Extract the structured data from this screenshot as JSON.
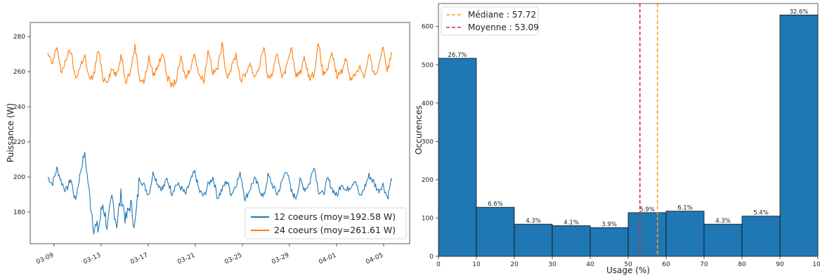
{
  "chart_data": [
    {
      "type": "line",
      "title": "",
      "xlabel": "",
      "ylabel": "Puissance (W)",
      "ylim": [
        162,
        288
      ],
      "yticks": [
        180,
        200,
        220,
        240,
        260,
        280
      ],
      "xticks": [
        "03-09",
        "03-13",
        "03-17",
        "03-21",
        "03-25",
        "03-29",
        "04-01",
        "04-05"
      ],
      "x_range_days": [
        "03-08",
        "04-06"
      ],
      "grid": false,
      "legend_position": "bottom-right",
      "series": [
        {
          "name": "12 coeurs (moy=192.58 W)",
          "color": "#1f77b4",
          "mean": 192.58,
          "values": [
            200,
            196,
            205,
            197,
            192,
            199,
            186,
            201,
            214,
            192,
            172,
            170,
            185,
            171,
            188,
            173,
            190,
            175,
            185,
            172,
            200,
            195,
            190,
            203,
            196,
            193,
            199,
            191,
            196,
            194,
            190,
            197,
            203,
            192,
            189,
            196,
            200,
            188,
            193,
            198,
            190,
            196,
            202,
            187,
            193,
            199,
            194,
            188,
            201,
            195,
            190,
            197,
            205,
            192,
            188,
            198,
            193,
            196,
            207,
            192,
            190,
            199,
            193,
            189,
            197,
            192,
            195,
            199,
            188,
            194,
            201,
            197,
            192,
            196,
            188,
            200
          ]
        },
        {
          "name": "24 coeurs (moy=261.61 W)",
          "color": "#ff7f0e",
          "mean": 261.61,
          "values": [
            270,
            264,
            275,
            258,
            268,
            272,
            256,
            262,
            270,
            255,
            258,
            273,
            256,
            255,
            262,
            257,
            270,
            255,
            260,
            275,
            256,
            254,
            268,
            258,
            263,
            272,
            257,
            252,
            255,
            268,
            256,
            262,
            270,
            258,
            255,
            273,
            259,
            262,
            276,
            257,
            262,
            270,
            255,
            258,
            265,
            257,
            262,
            274,
            256,
            259,
            270,
            258,
            262,
            275,
            257,
            260,
            268,
            256,
            259,
            276,
            258,
            262,
            270,
            257,
            260,
            268,
            255,
            259,
            263,
            257,
            270,
            258,
            262,
            275,
            260,
            272
          ]
        }
      ]
    },
    {
      "type": "bar",
      "title": "",
      "xlabel": "Usage (%)",
      "ylabel": "Occurences",
      "ylim": [
        0,
        660
      ],
      "xlim": [
        0,
        100
      ],
      "xticks": [
        "0",
        "10",
        "20",
        "30",
        "40",
        "50",
        "60",
        "70",
        "80",
        "90",
        "10"
      ],
      "yticks": [
        0,
        100,
        200,
        300,
        400,
        500,
        600
      ],
      "grid": false,
      "legend_position": "top-left",
      "bar_color": "#1f77b4",
      "bins": [
        {
          "start": 0,
          "end": 10,
          "value": 517,
          "label": "26.7%"
        },
        {
          "start": 10,
          "end": 20,
          "value": 128,
          "label": "6.6%"
        },
        {
          "start": 20,
          "end": 30,
          "value": 84,
          "label": "4.3%"
        },
        {
          "start": 30,
          "end": 40,
          "value": 80,
          "label": "4.1%"
        },
        {
          "start": 40,
          "end": 50,
          "value": 75,
          "label": "3.9%"
        },
        {
          "start": 50,
          "end": 60,
          "value": 114,
          "label": "5.9%"
        },
        {
          "start": 60,
          "end": 70,
          "value": 118,
          "label": "6.1%"
        },
        {
          "start": 70,
          "end": 80,
          "value": 84,
          "label": "4.3%"
        },
        {
          "start": 80,
          "end": 90,
          "value": 105,
          "label": "5.4%"
        },
        {
          "start": 90,
          "end": 100,
          "value": 630,
          "label": "32.6%"
        }
      ],
      "lines": [
        {
          "name": "Médiane : 57.72",
          "x": 57.72,
          "color": "#ff9f1c"
        },
        {
          "name": "Moyenne : 53.09",
          "x": 53.09,
          "color": "#e8292a"
        }
      ]
    }
  ]
}
